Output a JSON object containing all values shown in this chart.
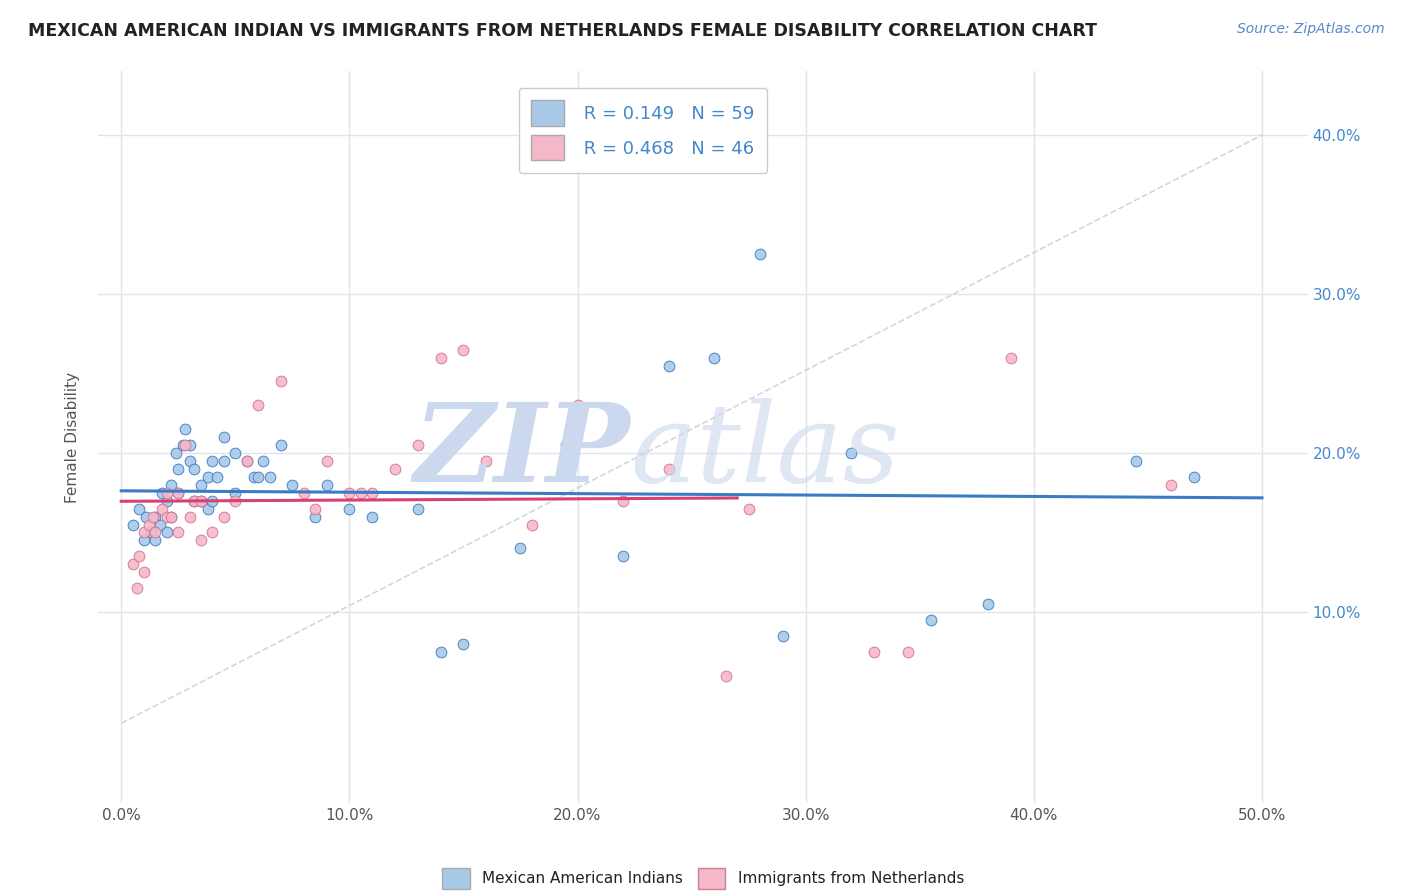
{
  "title": "MEXICAN AMERICAN INDIAN VS IMMIGRANTS FROM NETHERLANDS FEMALE DISABILITY CORRELATION CHART",
  "source": "Source: ZipAtlas.com",
  "xlabel_vals": [
    0,
    10,
    20,
    30,
    40,
    50
  ],
  "ylabel": "Female Disability",
  "ylabel_vals": [
    10,
    20,
    30,
    40
  ],
  "ylim": [
    -2,
    44
  ],
  "xlim": [
    -1,
    52
  ],
  "legend_label1": "Mexican American Indians",
  "legend_label2": "Immigrants from Netherlands",
  "R1": 0.149,
  "N1": 59,
  "R2": 0.468,
  "N2": 46,
  "color_blue": "#a8c8e8",
  "color_pink": "#f4b8c8",
  "color_blue_line": "#3a7cc4",
  "color_pink_line": "#d84070",
  "color_dash": "#c8ccd8",
  "watermark_color": "#ccd8ee",
  "blue_x": [
    0.5,
    0.8,
    1.0,
    1.1,
    1.3,
    1.5,
    1.5,
    1.7,
    1.8,
    2.0,
    2.0,
    2.2,
    2.2,
    2.4,
    2.5,
    2.5,
    2.7,
    2.8,
    3.0,
    3.0,
    3.2,
    3.2,
    3.5,
    3.5,
    3.8,
    3.8,
    4.0,
    4.0,
    4.2,
    4.5,
    4.5,
    5.0,
    5.0,
    5.5,
    5.8,
    6.0,
    6.2,
    6.5,
    7.0,
    7.5,
    8.5,
    9.0,
    10.0,
    11.0,
    13.0,
    14.0,
    15.0,
    17.5,
    19.5,
    22.0,
    24.0,
    26.0,
    28.0,
    29.0,
    32.0,
    35.5,
    38.0,
    44.5,
    47.0
  ],
  "blue_y": [
    15.5,
    16.5,
    14.5,
    16.0,
    15.0,
    14.5,
    16.0,
    15.5,
    17.5,
    15.0,
    17.0,
    16.0,
    18.0,
    20.0,
    17.5,
    19.0,
    20.5,
    21.5,
    19.5,
    20.5,
    17.0,
    19.0,
    17.0,
    18.0,
    16.5,
    18.5,
    17.0,
    19.5,
    18.5,
    19.5,
    21.0,
    17.5,
    20.0,
    19.5,
    18.5,
    18.5,
    19.5,
    18.5,
    20.5,
    18.0,
    16.0,
    18.0,
    16.5,
    16.0,
    16.5,
    7.5,
    8.0,
    14.0,
    20.5,
    13.5,
    25.5,
    26.0,
    32.5,
    8.5,
    20.0,
    9.5,
    10.5,
    19.5,
    18.5
  ],
  "pink_x": [
    0.5,
    0.7,
    0.8,
    1.0,
    1.0,
    1.2,
    1.4,
    1.5,
    1.8,
    2.0,
    2.0,
    2.2,
    2.5,
    2.5,
    2.8,
    3.0,
    3.2,
    3.5,
    3.5,
    4.0,
    4.5,
    5.0,
    5.5,
    6.0,
    7.0,
    8.0,
    8.5,
    9.0,
    10.0,
    10.5,
    11.0,
    12.0,
    13.0,
    14.0,
    15.0,
    16.0,
    18.0,
    20.0,
    22.0,
    24.0,
    26.5,
    27.5,
    33.0,
    34.5,
    39.0,
    46.0
  ],
  "pink_y": [
    13.0,
    11.5,
    13.5,
    15.0,
    12.5,
    15.5,
    16.0,
    15.0,
    16.5,
    16.0,
    17.5,
    16.0,
    15.0,
    17.5,
    20.5,
    16.0,
    17.0,
    14.5,
    17.0,
    15.0,
    16.0,
    17.0,
    19.5,
    23.0,
    24.5,
    17.5,
    16.5,
    19.5,
    17.5,
    17.5,
    17.5,
    19.0,
    20.5,
    26.0,
    26.5,
    19.5,
    15.5,
    23.0,
    17.0,
    19.0,
    6.0,
    16.5,
    7.5,
    7.5,
    26.0,
    18.0
  ],
  "grid_color": "#e0e4ec",
  "background_color": "#ffffff"
}
